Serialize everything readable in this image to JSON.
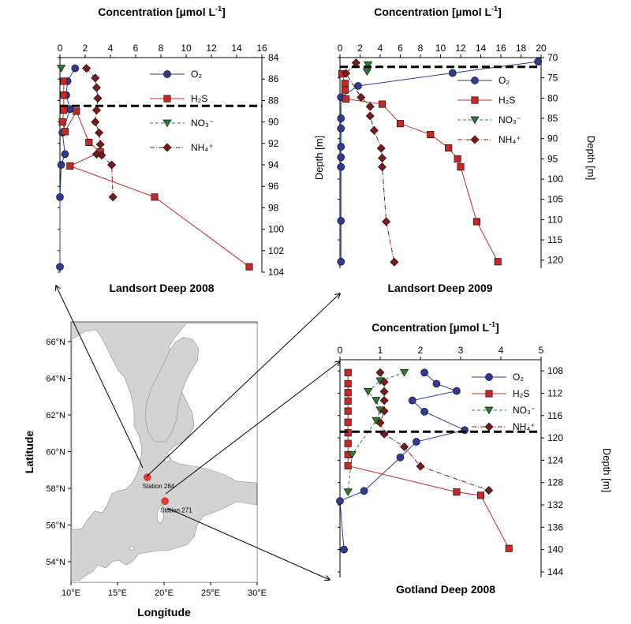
{
  "colors": {
    "O2": "#2f3a93",
    "H2S": "#c62828",
    "NO3": "#2e7d32",
    "NH4": "#7b1a1a",
    "station": "#e53935",
    "land": "#ffffff",
    "sea": "#d3d3d3"
  },
  "legend": {
    "O2": "O₂",
    "H2S": "H₂S",
    "NO3": "NO₃⁻",
    "NH4": "NH₄⁺"
  },
  "map": {
    "ylabel": "Latitude",
    "xlabel": "Longitude",
    "lat_ticks": [
      "66°N",
      "64°N",
      "62°N",
      "60°N",
      "58°N",
      "56°N",
      "54°N"
    ],
    "lon_ticks": [
      "10°E",
      "15°E",
      "20°E",
      "25°E",
      "30°E"
    ],
    "stations": [
      {
        "name": "Station 284",
        "lon": 18.2,
        "lat": 58.6
      },
      {
        "name": "Station 271",
        "lon": 20.1,
        "lat": 57.3
      }
    ]
  },
  "chart_data": [
    {
      "type": "line",
      "title": "Landsort Deep 2008",
      "xlabel": "Concentration [µmol L-1]",
      "ylabel": "",
      "xlim": [
        0,
        16
      ],
      "ylim": [
        104,
        84
      ],
      "x_ticks": [
        "0",
        "2",
        "4",
        "6",
        "8",
        "10",
        "12",
        "14",
        "16"
      ],
      "y_ticks": [
        "84",
        "86",
        "88",
        "90",
        "92",
        "94",
        "96",
        "98",
        "100",
        "102",
        "104"
      ],
      "y_axis_side": "right",
      "redox_depth": 88.5,
      "legend_position": "top-right",
      "series": [
        {
          "name": "O2",
          "points": [
            [
              1.2,
              85.0
            ],
            [
              0.6,
              86.2
            ],
            [
              0.5,
              87.5
            ],
            [
              0.8,
              88.8
            ],
            [
              0.2,
              91.0
            ],
            [
              0.4,
              93.0
            ],
            [
              0.1,
              94.0
            ],
            [
              0.0,
              97.0
            ],
            [
              0.0,
              103.5
            ]
          ]
        },
        {
          "name": "H2S",
          "points": [
            [
              0.3,
              86.2
            ],
            [
              0.3,
              87.5
            ],
            [
              0.3,
              88.9
            ],
            [
              0.2,
              90.0
            ],
            [
              0.4,
              90.9
            ],
            [
              1.3,
              89.0
            ],
            [
              2.3,
              91.9
            ],
            [
              3.2,
              92.8
            ],
            [
              0.8,
              94.1
            ],
            [
              7.5,
              97.0
            ],
            [
              15.0,
              103.5
            ]
          ]
        },
        {
          "name": "NO3",
          "points": [
            [
              0.1,
              85.0
            ]
          ]
        },
        {
          "name": "NH4",
          "points": [
            [
              2.1,
              85.0
            ],
            [
              2.8,
              85.9
            ],
            [
              2.9,
              86.8
            ],
            [
              3.0,
              87.8
            ],
            [
              2.9,
              88.9
            ],
            [
              2.8,
              90.0
            ],
            [
              3.1,
              91.0
            ],
            [
              3.2,
              92.1
            ],
            [
              2.9,
              93.0
            ],
            [
              3.3,
              93.1
            ],
            [
              4.1,
              94.0
            ],
            [
              4.2,
              97.0
            ]
          ]
        }
      ]
    },
    {
      "type": "line",
      "title": "Landsort Deep 2009",
      "xlabel": "Concentration [µmol L-1]",
      "ylabel": "Depth [m]",
      "xlim": [
        0,
        20
      ],
      "ylim": [
        122,
        70
      ],
      "x_ticks": [
        "0",
        "2",
        "4",
        "6",
        "8",
        "10",
        "12",
        "14",
        "16",
        "18",
        "20"
      ],
      "y_ticks": [
        "70",
        "75",
        "80",
        "85",
        "90",
        "95",
        "100",
        "105",
        "110",
        "115",
        "120"
      ],
      "y_axis_side": "right",
      "redox_depth": 72.3,
      "legend_position": "top-right",
      "series": [
        {
          "name": "O2",
          "points": [
            [
              19.7,
              71.0
            ],
            [
              11.2,
              73.8
            ],
            [
              1.8,
              77.0
            ],
            [
              0.1,
              79.8
            ],
            [
              0.1,
              85.0
            ],
            [
              0.1,
              87.5
            ],
            [
              0.1,
              92.0
            ],
            [
              0.1,
              94.6
            ],
            [
              0.1,
              97.0
            ],
            [
              0.1,
              110.3
            ],
            [
              0.1,
              120.4
            ]
          ]
        },
        {
          "name": "H2S",
          "points": [
            [
              0.2,
              74.0
            ],
            [
              0.5,
              76.4
            ],
            [
              0.5,
              78.0
            ],
            [
              0.6,
              80.2
            ],
            [
              4.2,
              81.5
            ],
            [
              6.0,
              86.3
            ],
            [
              9.0,
              89.0
            ],
            [
              10.8,
              92.3
            ],
            [
              11.7,
              95.0
            ],
            [
              12.0,
              97.0
            ],
            [
              13.6,
              110.5
            ],
            [
              15.7,
              120.4
            ]
          ]
        },
        {
          "name": "NO3",
          "points": [
            [
              2.8,
              71.8
            ],
            [
              2.7,
              73.5
            ]
          ]
        },
        {
          "name": "NH4",
          "points": [
            [
              1.6,
              71.3
            ],
            [
              0.6,
              73.9
            ],
            [
              2.1,
              79.8
            ],
            [
              3.0,
              82.1
            ],
            [
              3.0,
              84.4
            ],
            [
              3.4,
              88.0
            ],
            [
              4.1,
              92.4
            ],
            [
              4.2,
              94.8
            ],
            [
              4.2,
              97.0
            ],
            [
              4.6,
              110.5
            ],
            [
              5.4,
              120.5
            ]
          ]
        }
      ]
    },
    {
      "type": "line",
      "title": "Gotland Deep 2008",
      "xlabel": "Concentration [µmol L-1]",
      "ylabel": "Depth [m]",
      "xlim": [
        0,
        5
      ],
      "ylim": [
        145,
        106
      ],
      "x_ticks": [
        "0",
        "1",
        "2",
        "3",
        "4",
        "5"
      ],
      "y_ticks": [
        "108",
        "112",
        "116",
        "120",
        "124",
        "128",
        "132",
        "136",
        "140",
        "144"
      ],
      "y_axis_side": "right",
      "redox_depth": 118.9,
      "legend_position": "top-right",
      "series": [
        {
          "name": "O2",
          "points": [
            [
              2.1,
              108.3
            ],
            [
              2.4,
              110.3
            ],
            [
              2.9,
              111.6
            ],
            [
              1.8,
              113.3
            ],
            [
              2.1,
              115.3
            ],
            [
              3.1,
              118.6
            ],
            [
              1.9,
              120.7
            ],
            [
              1.5,
              123.5
            ],
            [
              0.6,
              129.5
            ],
            [
              0.0,
              131.3
            ],
            [
              0.1,
              140.0
            ]
          ]
        },
        {
          "name": "H2S",
          "points": [
            [
              0.2,
              108.3
            ],
            [
              0.2,
              110.3
            ],
            [
              0.2,
              111.9
            ],
            [
              0.2,
              113.4
            ],
            [
              0.2,
              115.2
            ],
            [
              0.2,
              117.2
            ],
            [
              0.2,
              119.1
            ],
            [
              0.2,
              121.0
            ],
            [
              0.2,
              123.0
            ],
            [
              0.2,
              125.0
            ],
            [
              2.9,
              129.7
            ],
            [
              3.5,
              130.3
            ],
            [
              4.2,
              139.8
            ]
          ]
        },
        {
          "name": "NO3",
          "points": [
            [
              1.6,
              108.3
            ],
            [
              1.0,
              109.8
            ],
            [
              0.7,
              111.7
            ],
            [
              0.9,
              113.3
            ],
            [
              1.0,
              115.0
            ],
            [
              0.9,
              116.9
            ],
            [
              0.3,
              123.0
            ],
            [
              0.2,
              129.7
            ]
          ]
        },
        {
          "name": "NH4",
          "points": [
            [
              1.0,
              108.3
            ],
            [
              1.1,
              110.0
            ],
            [
              1.1,
              111.7
            ],
            [
              1.1,
              113.3
            ],
            [
              1.1,
              115.2
            ],
            [
              1.0,
              117.3
            ],
            [
              1.1,
              119.3
            ],
            [
              1.6,
              121.6
            ],
            [
              2.0,
              125.1
            ],
            [
              3.7,
              129.4
            ]
          ]
        }
      ]
    }
  ],
  "strings": {
    "conc_unit_prefix": "Concentration [",
    "conc_unit_mu": "µmol L",
    "conc_unit_exp": "-1",
    "conc_unit_close": "]"
  }
}
